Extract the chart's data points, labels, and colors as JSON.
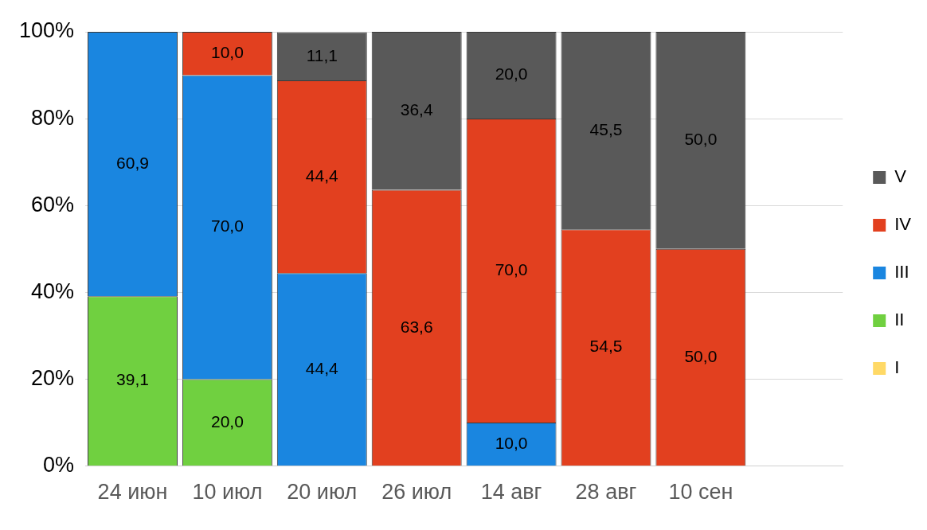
{
  "chart_data": {
    "type": "bar",
    "stacked": true,
    "categories": [
      "24 июн",
      "10 июл",
      "20 июл",
      "26 июл",
      "14 авг",
      "28 авг",
      "10 сен",
      null
    ],
    "series": [
      {
        "name": "I",
        "color": "#ffd966",
        "values": [
          null,
          null,
          null,
          null,
          null,
          null,
          null,
          null
        ]
      },
      {
        "name": "II",
        "color": "#70d040",
        "values": [
          39.1,
          20.0,
          null,
          null,
          null,
          null,
          null,
          null
        ],
        "value_labels": [
          "39,1",
          "20,0",
          null,
          null,
          null,
          null,
          null,
          null
        ]
      },
      {
        "name": "III",
        "color": "#1a86e0",
        "values": [
          60.9,
          70.0,
          44.4,
          null,
          10.0,
          null,
          null,
          null
        ],
        "value_labels": [
          "60,9",
          "70,0",
          "44,4",
          null,
          "10,0",
          null,
          null,
          null
        ]
      },
      {
        "name": "IV",
        "color": "#e2401f",
        "values": [
          null,
          10.0,
          44.4,
          63.6,
          70.0,
          54.5,
          50.0,
          null
        ],
        "value_labels": [
          null,
          "10,0",
          "44,4",
          "63,6",
          "70,0",
          "54,5",
          "50,0",
          null
        ]
      },
      {
        "name": "V",
        "color": "#595959",
        "values": [
          null,
          null,
          11.1,
          36.4,
          20.0,
          45.5,
          50.0,
          null
        ],
        "value_labels": [
          null,
          null,
          "11,1",
          "36,4",
          "20,0",
          "45,5",
          "50,0",
          null
        ]
      }
    ],
    "ylim": [
      0,
      100
    ],
    "yticks": [
      {
        "value": 0,
        "label": "0%"
      },
      {
        "value": 20,
        "label": "20%"
      },
      {
        "value": 40,
        "label": "40%"
      },
      {
        "value": 60,
        "label": "60%"
      },
      {
        "value": 80,
        "label": "80%"
      },
      {
        "value": 100,
        "label": "100%"
      }
    ],
    "grid": "y",
    "legend": "right"
  }
}
